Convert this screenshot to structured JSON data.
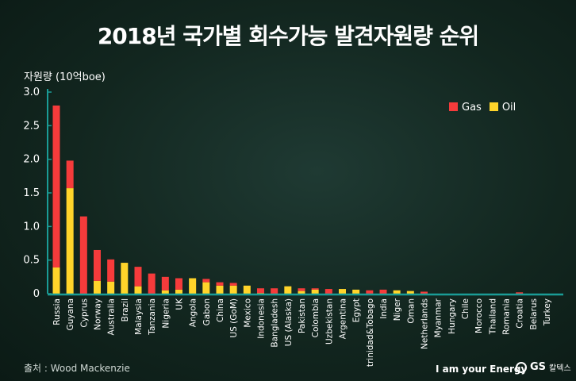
{
  "title": "2018년 국가별 회수가능 발견자원량 순위",
  "source": "출처 : Wood Mackenzie",
  "footer": {
    "slogan": "I am your Energy",
    "logo_text": "GS",
    "logo_kr": "칼텍스"
  },
  "colors": {
    "gas": "#f53b3b",
    "oil": "#ffd42a",
    "axis": "#1a9c96",
    "background": "#12261f"
  },
  "chart_data": {
    "type": "bar",
    "stacked": true,
    "title": "2018년 국가별 회수가능 발견자원량 순위",
    "ylabel": "자원량 (10억boe)",
    "xlabel": "",
    "ylim": [
      0,
      3.0
    ],
    "yticks": [
      "0",
      "0.5",
      "1.0",
      "1.5",
      "2.0",
      "2.5",
      "3.0"
    ],
    "legend_position": "top-right",
    "grid": false,
    "categories": [
      "Russia",
      "Guyana",
      "Cyprus",
      "Norway",
      "Australia",
      "Brazil",
      "Malaysia",
      "Tanzania",
      "Nigeria",
      "UK",
      "Angola",
      "Gabon",
      "China",
      "US (GoM)",
      "Mexico",
      "Indonesia",
      "Bangladesh",
      "US (Alaska)",
      "Pakistan",
      "Colombia",
      "Uzbekistan",
      "Argentina",
      "Egypt",
      "trinidad&Tobago",
      "India",
      "Niger",
      "Oman",
      "Netherlands",
      "Myanmar",
      "Hungary",
      "Chile",
      "Morocco",
      "Thailand",
      "Romania",
      "Croatia",
      "Belarus",
      "Turkey"
    ],
    "series": [
      {
        "name": "Oil",
        "values": [
          0.39,
          1.57,
          0,
          0.19,
          0.18,
          0.46,
          0.11,
          0,
          0.05,
          0.06,
          0.23,
          0.17,
          0.12,
          0.12,
          0.12,
          0.01,
          0,
          0.11,
          0.04,
          0.06,
          0,
          0.07,
          0.06,
          0,
          0,
          0.05,
          0.04,
          0,
          0,
          0,
          0,
          0,
          0,
          0,
          0,
          0,
          0
        ]
      },
      {
        "name": "Gas",
        "values": [
          2.41,
          0.41,
          1.15,
          0.46,
          0.33,
          0,
          0.29,
          0.3,
          0.2,
          0.17,
          0,
          0.05,
          0.05,
          0.04,
          0,
          0.07,
          0.08,
          0,
          0.04,
          0.02,
          0.07,
          0,
          0,
          0.05,
          0.06,
          0,
          0,
          0.03,
          0,
          0,
          0,
          0,
          0,
          0,
          0.02,
          0,
          0
        ]
      }
    ]
  }
}
